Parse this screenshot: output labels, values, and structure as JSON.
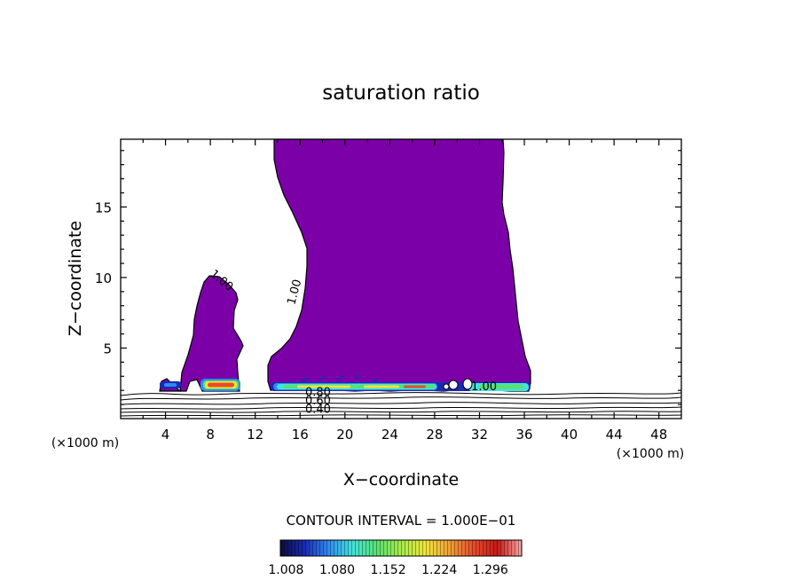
{
  "chart_data": {
    "type": "contour",
    "title": "saturation ratio",
    "xlabel": "X−coordinate",
    "ylabel": "Z−coordinate",
    "x_unit_left": "(×1000 m)",
    "x_unit_right": "(×1000 m)",
    "xlim": [
      0,
      50
    ],
    "ylim": [
      0,
      19.8
    ],
    "xticks": [
      4,
      8,
      12,
      16,
      20,
      24,
      28,
      32,
      36,
      40,
      44,
      48
    ],
    "yticks": [
      5,
      10,
      15
    ],
    "contour_interval_text": "CONTOUR INTERVAL = 1.000E−01",
    "contour_labels": [
      {
        "text": "1.00",
        "x": 8.8,
        "z": 9.6
      },
      {
        "text": "1.00",
        "x": 15.8,
        "z": 8.9
      },
      {
        "text": "1.00",
        "x": 32.4,
        "z": 2.0
      },
      {
        "text": "0.80",
        "x": 17.6,
        "z": 1.6
      },
      {
        "text": "0.60",
        "x": 17.6,
        "z": 1.0
      },
      {
        "text": "0.40",
        "x": 17.6,
        "z": 0.4
      }
    ],
    "cloud_regions": [
      {
        "name": "tall cloud",
        "x_range": [
          13.5,
          36.3
        ],
        "z_top": 19.8,
        "z_base": 2.2
      },
      {
        "name": "small cloud",
        "x_range": [
          3.5,
          10.8
        ],
        "z_top": 10.3,
        "z_base": 2.3
      }
    ],
    "colorbar": {
      "ticks": [
        "1.008",
        "1.080",
        "1.152",
        "1.224",
        "1.296"
      ],
      "range": [
        1.0,
        1.34
      ],
      "colors": [
        "#0c0c3c",
        "#1a2ab4",
        "#2f8cf0",
        "#41e4dc",
        "#58e070",
        "#a6ea48",
        "#efe63a",
        "#f2a036",
        "#e84c2c",
        "#c81818",
        "#fba7a7"
      ]
    },
    "fill_color": "#7b00a7",
    "grid": false
  }
}
